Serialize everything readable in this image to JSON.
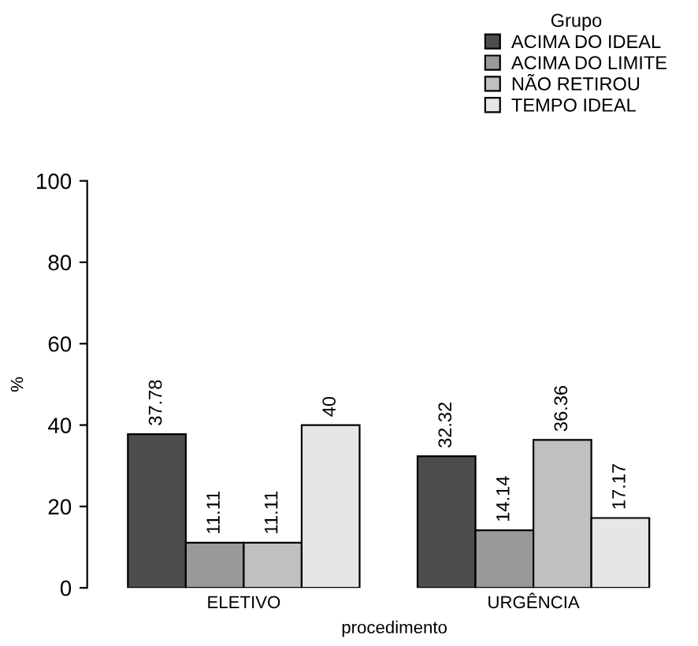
{
  "chart_data": {
    "type": "bar",
    "xlabel": "procedimento",
    "ylabel": "%",
    "legend_title": "Grupo",
    "categories": [
      "ELETIVO",
      "URGÊNCIA"
    ],
    "series": [
      {
        "name": "ACIMA DO IDEAL",
        "color": "#4d4d4d",
        "values": [
          37.78,
          32.32
        ]
      },
      {
        "name": "ACIMA DO LIMITE",
        "color": "#999999",
        "values": [
          11.11,
          14.14
        ]
      },
      {
        "name": "NÃO RETIROU",
        "color": "#c0c0c0",
        "values": [
          11.11,
          36.36
        ]
      },
      {
        "name": "TEMPO IDEAL",
        "color": "#e6e6e6",
        "values": [
          40,
          17.17
        ]
      }
    ],
    "ylim": [
      0,
      100
    ],
    "yticks": [
      0,
      20,
      40,
      60,
      80,
      100
    ],
    "grid": false,
    "legend": "top right",
    "data_labels": true
  }
}
